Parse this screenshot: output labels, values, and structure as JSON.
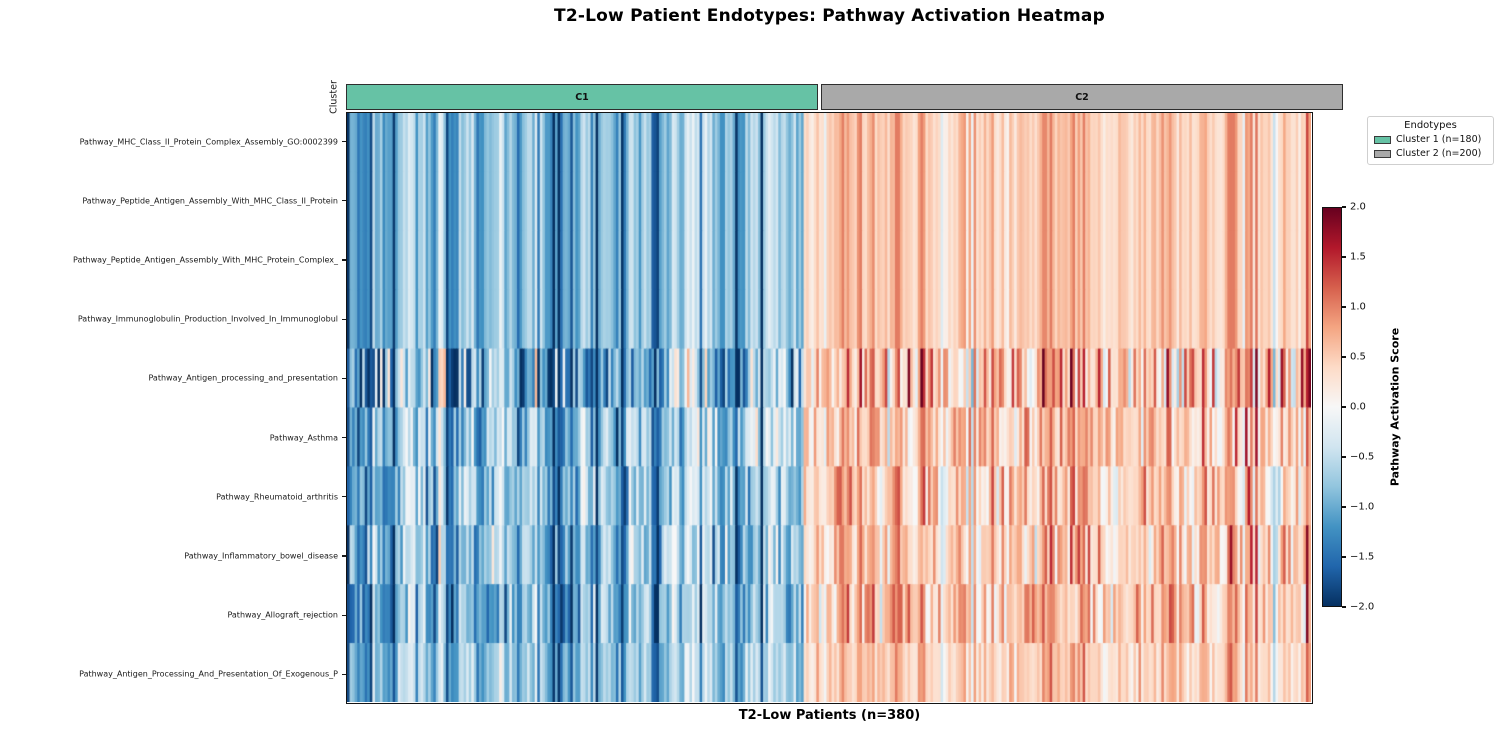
{
  "chart_data": {
    "type": "heatmap",
    "title": "T2-Low Patient Endotypes: Pathway Activation Heatmap",
    "xlabel": "T2-Low Patients (n=380)",
    "rows": [
      "Pathway_MHC_Class_II_Protein_Complex_Assembly_GO:0002399",
      "Pathway_Peptide_Antigen_Assembly_With_MHC_Class_II_Protein",
      "Pathway_Peptide_Antigen_Assembly_With_MHC_Protein_Complex_",
      "Pathway_Immunoglobulin_Production_Involved_In_Immunoglobul",
      "Pathway_Antigen_processing_and_presentation",
      "Pathway_Asthma",
      "Pathway_Rheumatoid_arthritis",
      "Pathway_Inflammatory_bowel_disease",
      "Pathway_Allograft_rejection",
      "Pathway_Antigen_Processing_And_Presentation_Of_Exogenous_P"
    ],
    "n_columns": 380,
    "column_groups": [
      {
        "name": "Cluster 1",
        "n": 180,
        "mean": -0.8,
        "sd": 0.55
      },
      {
        "name": "Cluster 2",
        "n": 200,
        "mean": 0.52,
        "sd": 0.35
      }
    ],
    "row_profiles": [
      {
        "scale": 1.0,
        "noise_sd": 0.0
      },
      {
        "scale": 1.0,
        "noise_sd": 0.0
      },
      {
        "scale": 1.0,
        "noise_sd": 0.0
      },
      {
        "scale": 1.0,
        "noise_sd": 0.0
      },
      {
        "scale": 1.12,
        "noise_sd": 0.55
      },
      {
        "scale": 0.95,
        "noise_sd": 0.32
      },
      {
        "scale": 0.92,
        "noise_sd": 0.3
      },
      {
        "scale": 1.02,
        "noise_sd": 0.3
      },
      {
        "scale": 1.05,
        "noise_sd": 0.32
      },
      {
        "scale": 0.93,
        "noise_sd": 0.14
      }
    ],
    "generation": {
      "seed": 42,
      "smoothing": 0.45,
      "c1_dark_stripe_prob": 0.07,
      "c1_dark_stripe_delta": -0.85,
      "c2_bright_stripe_prob": 0.05,
      "c2_bright_stripe_delta": 0.5,
      "c2_pale_stripe_prob": 0.04,
      "c2_pale_stripe_delta": -0.55
    },
    "colorbar": {
      "label": "Pathway Activation Score",
      "vmin": -2.0,
      "vmax": 2.0,
      "colormap": "RdBu_r",
      "ticks": [
        "2.0",
        "1.5",
        "1.0",
        "0.5",
        "0.0",
        "−0.5",
        "−1.0",
        "−1.5",
        "−2.0"
      ],
      "anchors": [
        "#053061",
        "#2166ac",
        "#4393c3",
        "#92c5de",
        "#d1e5f0",
        "#f7f7f7",
        "#fddbc7",
        "#f4a582",
        "#d6604d",
        "#b2182b",
        "#67001f"
      ]
    }
  },
  "cluster_track": {
    "axis_label": "Cluster",
    "segments": [
      {
        "label": "C1",
        "color": "#66c2a5",
        "n": 180
      },
      {
        "label": "C2",
        "color": "#a9a9a9",
        "n": 200
      }
    ]
  },
  "legend": {
    "title": "Endotypes",
    "items": [
      {
        "label": "Cluster 1 (n=180)",
        "color": "#66c2a5"
      },
      {
        "label": "Cluster 2 (n=200)",
        "color": "#a9a9a9"
      }
    ]
  }
}
